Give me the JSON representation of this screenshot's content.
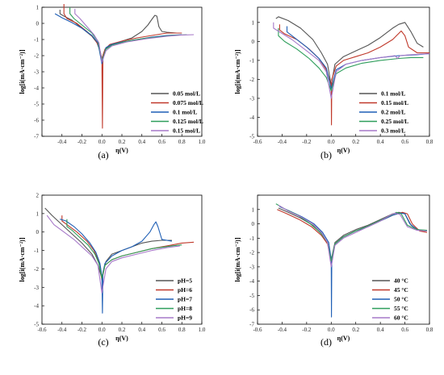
{
  "chart_data": [
    {
      "type": "line",
      "panel_label": "(a)",
      "xlabel": "η(V)",
      "ylabel": "log[i(mA·cm⁻²)]",
      "xlim": [
        -0.6,
        1.0
      ],
      "ylim": [
        -7,
        1
      ],
      "xticks": [
        -0.6,
        -0.4,
        -0.2,
        0.0,
        0.2,
        0.4,
        0.6,
        0.8,
        1.0
      ],
      "xtick_labels": [
        "",
        "-0.4",
        "-0.2",
        "0.0",
        "0.2",
        "0.4",
        "0.6",
        "0.8",
        "1.0"
      ],
      "yticks": [
        -7,
        -6,
        -5,
        -4,
        -3,
        -2,
        -1,
        0,
        1
      ],
      "ytick_labels": [
        "-7",
        "-6",
        "-5",
        "-4",
        "-3",
        "-2",
        "-1",
        "0",
        "1"
      ],
      "legend_position": "bottom-right",
      "series": [
        {
          "name": "0.05 mol/L",
          "color": "#555555",
          "x": [
            -0.42,
            -0.42,
            -0.38,
            -0.3,
            -0.2,
            -0.1,
            -0.05,
            -0.02,
            0,
            0.02,
            0.05,
            0.1,
            0.2,
            0.3,
            0.4,
            0.46,
            0.5,
            0.53,
            0.55,
            0.57,
            0.6,
            0.65,
            0.75,
            0.8
          ],
          "y": [
            0.85,
            0.6,
            0.45,
            0.2,
            -0.3,
            -0.8,
            -1.2,
            -1.7,
            -2.2,
            -1.8,
            -1.5,
            -1.3,
            -1.1,
            -0.9,
            -0.5,
            -0.1,
            0.25,
            0.5,
            0.45,
            -0.2,
            -0.5,
            -0.55,
            -0.6,
            -0.6
          ]
        },
        {
          "name": "0.075 mol/L",
          "color": "#c0392b",
          "x": [
            -0.38,
            -0.38,
            -0.35,
            -0.25,
            -0.15,
            -0.08,
            -0.03,
            0,
            0.005,
            0.01,
            0.03,
            0.08,
            0.2,
            0.35,
            0.5,
            0.65,
            0.8
          ],
          "y": [
            1.2,
            0.6,
            0.3,
            0.0,
            -0.5,
            -0.9,
            -1.4,
            -2.2,
            -6.5,
            -2.0,
            -1.6,
            -1.3,
            -1.1,
            -0.9,
            -0.75,
            -0.6,
            -0.6
          ]
        },
        {
          "name": "0.1 mol/L",
          "color": "#1f5fb5",
          "x": [
            -0.47,
            -0.4,
            -0.3,
            -0.2,
            -0.1,
            -0.04,
            0,
            0.04,
            0.1,
            0.2,
            0.35,
            0.5,
            0.65,
            0.8
          ],
          "y": [
            0.6,
            0.35,
            0.05,
            -0.3,
            -0.75,
            -1.2,
            -2.5,
            -1.5,
            -1.3,
            -1.15,
            -1.0,
            -0.85,
            -0.75,
            -0.7
          ]
        },
        {
          "name": "0.125 mol/L",
          "color": "#2e9e5b",
          "x": [
            -0.32,
            -0.32,
            -0.28,
            -0.2,
            -0.1,
            -0.04,
            0,
            0.04,
            0.1,
            0.25,
            0.4,
            0.55,
            0.7,
            0.85
          ],
          "y": [
            1.0,
            0.6,
            0.3,
            -0.1,
            -0.6,
            -1.1,
            -2.3,
            -1.6,
            -1.35,
            -1.1,
            -0.95,
            -0.85,
            -0.75,
            -0.7
          ]
        },
        {
          "name": "0.15 mol/L",
          "color": "#a678c8",
          "x": [
            -0.27,
            -0.27,
            -0.22,
            -0.15,
            -0.08,
            -0.03,
            0,
            0.04,
            0.1,
            0.25,
            0.45,
            0.65,
            0.8,
            0.92
          ],
          "y": [
            0.9,
            0.6,
            0.3,
            -0.2,
            -0.7,
            -1.2,
            -2.4,
            -1.7,
            -1.4,
            -1.15,
            -0.95,
            -0.8,
            -0.72,
            -0.7
          ]
        }
      ]
    },
    {
      "type": "line",
      "panel_label": "(b)",
      "xlabel": "η(V)",
      "ylabel": "log[i(mA·cm⁻²)]",
      "xlim": [
        -0.6,
        0.8
      ],
      "ylim": [
        -5,
        1.8
      ],
      "xticks": [
        -0.6,
        -0.4,
        -0.2,
        0.0,
        0.2,
        0.4,
        0.6,
        0.8
      ],
      "xtick_labels": [
        "-0.6",
        "-0.4",
        "-0.2",
        "0.0",
        "0.2",
        "0.4",
        "0.6",
        "0.8"
      ],
      "yticks": [
        -5,
        -4,
        -3,
        -2,
        -1,
        0,
        1
      ],
      "ytick_labels": [
        "-5",
        "-4",
        "-3",
        "-2",
        "-1",
        "0",
        "1"
      ],
      "legend_position": "bottom-right",
      "series": [
        {
          "name": "0.1 mol/L",
          "color": "#555555",
          "x": [
            -0.45,
            -0.43,
            -0.35,
            -0.25,
            -0.15,
            -0.08,
            -0.03,
            0,
            0.03,
            0.1,
            0.2,
            0.3,
            0.4,
            0.5,
            0.55,
            0.6,
            0.65,
            0.7,
            0.75
          ],
          "y": [
            1.2,
            1.3,
            1.1,
            0.7,
            0.1,
            -0.6,
            -1.2,
            -2.3,
            -1.2,
            -0.8,
            -0.5,
            -0.2,
            0.2,
            0.7,
            0.9,
            1.0,
            0.5,
            -0.1,
            -0.3
          ]
        },
        {
          "name": "0.15 mol/L",
          "color": "#c0392b",
          "x": [
            -0.42,
            -0.42,
            -0.38,
            -0.28,
            -0.18,
            -0.1,
            -0.04,
            0,
            0.002,
            0.005,
            0.04,
            0.1,
            0.2,
            0.3,
            0.4,
            0.5,
            0.57,
            0.6,
            0.63,
            0.7,
            0.8
          ],
          "y": [
            0.9,
            0.6,
            0.4,
            0.1,
            -0.4,
            -0.9,
            -1.5,
            -2.3,
            -4.4,
            -2.0,
            -1.3,
            -1.0,
            -0.8,
            -0.6,
            -0.3,
            0.1,
            0.55,
            0.3,
            -0.3,
            -0.6,
            -0.6
          ]
        },
        {
          "name": "0.2 mol/L",
          "color": "#1f5fb5",
          "x": [
            -0.36,
            -0.36,
            -0.3,
            -0.2,
            -0.1,
            -0.04,
            0,
            0.04,
            0.12,
            0.25,
            0.4,
            0.55,
            0.7,
            0.8
          ],
          "y": [
            0.8,
            0.5,
            0.2,
            -0.3,
            -0.9,
            -1.4,
            -2.5,
            -1.5,
            -1.2,
            -1.0,
            -0.85,
            -0.75,
            -0.7,
            -0.65
          ]
        },
        {
          "name": "0.25 mol/L",
          "color": "#2e9e5b",
          "x": [
            -0.43,
            -0.43,
            -0.38,
            -0.28,
            -0.18,
            -0.1,
            -0.04,
            0,
            0.04,
            0.12,
            0.25,
            0.4,
            0.55,
            0.65,
            0.75
          ],
          "y": [
            0.7,
            0.3,
            0.0,
            -0.4,
            -0.9,
            -1.4,
            -1.9,
            -2.6,
            -1.7,
            -1.4,
            -1.15,
            -1.0,
            -0.9,
            -0.85,
            -0.85
          ]
        },
        {
          "name": "0.3 mol/L",
          "color": "#a678c8",
          "x": [
            -0.47,
            -0.47,
            -0.42,
            -0.32,
            -0.2,
            -0.1,
            -0.04,
            0,
            0.04,
            0.12,
            0.25,
            0.4,
            0.52,
            0.54,
            0.56,
            0.65,
            0.8
          ],
          "y": [
            1.0,
            0.7,
            0.5,
            0.1,
            -0.5,
            -1.0,
            -1.6,
            -3.0,
            -1.6,
            -1.2,
            -1.0,
            -0.85,
            -0.75,
            -0.9,
            -0.75,
            -0.7,
            -0.65
          ]
        }
      ]
    },
    {
      "type": "line",
      "panel_label": "(c)",
      "xlabel": "η(V)",
      "ylabel": "log[i(mA·cm⁻²)]",
      "xlim": [
        -0.6,
        1.0
      ],
      "ylim": [
        -5,
        2
      ],
      "xticks": [
        -0.6,
        -0.4,
        -0.2,
        0.0,
        0.2,
        0.4,
        0.6,
        0.8,
        1.0
      ],
      "xtick_labels": [
        "-0.6",
        "-0.4",
        "-0.2",
        "0.0",
        "0.2",
        "0.4",
        "0.6",
        "0.8",
        "1.0"
      ],
      "yticks": [
        -5,
        -4,
        -3,
        -2,
        -1,
        0,
        1,
        2
      ],
      "ytick_labels": [
        "-5",
        "-4",
        "-3",
        "-2",
        "-1",
        "0",
        "1",
        "2"
      ],
      "legend_position": "bottom-right",
      "series": [
        {
          "name": "pH=5",
          "color": "#555555",
          "x": [
            -0.57,
            -0.5,
            -0.4,
            -0.3,
            -0.2,
            -0.1,
            -0.04,
            0,
            0.04,
            0.1,
            0.2,
            0.3,
            0.4,
            0.5,
            0.6,
            0.7
          ],
          "y": [
            1.3,
            0.9,
            0.4,
            -0.1,
            -0.6,
            -1.2,
            -1.8,
            -2.5,
            -1.6,
            -1.2,
            -1.0,
            -0.8,
            -0.6,
            -0.5,
            -0.45,
            -0.45
          ]
        },
        {
          "name": "pH=6",
          "color": "#c0392b",
          "x": [
            -0.4,
            -0.4,
            -0.35,
            -0.25,
            -0.15,
            -0.08,
            -0.03,
            0,
            0.03,
            0.1,
            0.2,
            0.35,
            0.5,
            0.65,
            0.8,
            0.92
          ],
          "y": [
            0.9,
            0.6,
            0.4,
            0.0,
            -0.5,
            -1.0,
            -1.6,
            -2.6,
            -1.8,
            -1.5,
            -1.3,
            -1.1,
            -0.9,
            -0.75,
            -0.6,
            -0.55
          ]
        },
        {
          "name": "pH=7",
          "color": "#1f5fb5",
          "x": [
            -0.42,
            -0.36,
            -0.28,
            -0.2,
            -0.12,
            -0.06,
            -0.02,
            0,
            0.005,
            0.01,
            0.03,
            0.1,
            0.2,
            0.3,
            0.4,
            0.48,
            0.52,
            0.54,
            0.56,
            0.6,
            0.7
          ],
          "y": [
            0.7,
            0.6,
            0.3,
            -0.1,
            -0.6,
            -1.1,
            -1.7,
            -2.4,
            -4.4,
            -2.2,
            -1.7,
            -1.3,
            -1.0,
            -0.8,
            -0.5,
            0.0,
            0.4,
            0.55,
            0.3,
            -0.4,
            -0.5
          ]
        },
        {
          "name": "pH=8",
          "color": "#2e9e5b",
          "x": [
            -0.35,
            -0.35,
            -0.3,
            -0.22,
            -0.14,
            -0.07,
            -0.03,
            0,
            0.03,
            0.1,
            0.2,
            0.35,
            0.5,
            0.7,
            0.8
          ],
          "y": [
            0.7,
            0.3,
            0.1,
            -0.3,
            -0.7,
            -1.2,
            -1.7,
            -2.5,
            -1.8,
            -1.5,
            -1.3,
            -1.1,
            -0.9,
            -0.75,
            -0.7
          ]
        },
        {
          "name": "pH=9",
          "color": "#a678c8",
          "x": [
            -0.55,
            -0.48,
            -0.38,
            -0.28,
            -0.18,
            -0.1,
            -0.04,
            0,
            0.04,
            0.1,
            0.2,
            0.35,
            0.5,
            0.65,
            0.78
          ],
          "y": [
            0.9,
            0.4,
            0.0,
            -0.4,
            -0.9,
            -1.3,
            -1.8,
            -3.3,
            -2.0,
            -1.6,
            -1.4,
            -1.2,
            -1.0,
            -0.85,
            -0.75
          ]
        }
      ]
    },
    {
      "type": "line",
      "panel_label": "(d)",
      "xlabel": "η(V)",
      "ylabel": "log[i(mA·cm⁻²)]",
      "xlim": [
        -0.6,
        0.8
      ],
      "ylim": [
        -7,
        2
      ],
      "xticks": [
        -0.6,
        -0.4,
        -0.2,
        0.0,
        0.2,
        0.4,
        0.6,
        0.8
      ],
      "xtick_labels": [
        "-0.6",
        "-0.4",
        "-0.2",
        "0.0",
        "0.2",
        "0.4",
        "0.6",
        "0.8"
      ],
      "yticks": [
        -7,
        -6,
        -5,
        -4,
        -3,
        -2,
        -1,
        0,
        1,
        2
      ],
      "ytick_labels": [
        "-7",
        "-6",
        "-5",
        "-4",
        "-3",
        "-2",
        "-1",
        "0",
        "1",
        ""
      ],
      "legend_position": "bottom-right",
      "series": [
        {
          "name": "40 °C",
          "color": "#555555",
          "x": [
            -0.43,
            -0.35,
            -0.25,
            -0.15,
            -0.08,
            -0.03,
            0,
            0.03,
            0.1,
            0.2,
            0.3,
            0.4,
            0.5,
            0.55,
            0.6,
            0.65,
            0.7,
            0.78
          ],
          "y": [
            1.1,
            0.8,
            0.4,
            -0.1,
            -0.7,
            -1.3,
            -2.5,
            -1.3,
            -0.8,
            -0.4,
            -0.1,
            0.3,
            0.7,
            0.8,
            0.7,
            -0.1,
            -0.4,
            -0.5
          ]
        },
        {
          "name": "45 °C",
          "color": "#c0392b",
          "x": [
            -0.44,
            -0.36,
            -0.26,
            -0.16,
            -0.08,
            -0.03,
            0,
            0.03,
            0.1,
            0.2,
            0.3,
            0.4,
            0.5,
            0.58,
            0.62,
            0.66,
            0.72,
            0.78
          ],
          "y": [
            1.0,
            0.7,
            0.3,
            -0.2,
            -0.8,
            -1.4,
            -2.6,
            -1.4,
            -0.9,
            -0.5,
            -0.2,
            0.2,
            0.6,
            0.8,
            0.7,
            0.0,
            -0.5,
            -0.6
          ]
        },
        {
          "name": "50 °C",
          "color": "#1f5fb5",
          "x": [
            -0.42,
            -0.34,
            -0.24,
            -0.14,
            -0.07,
            -0.02,
            0,
            0.002,
            0.005,
            0.03,
            0.1,
            0.2,
            0.3,
            0.4,
            0.5,
            0.56,
            0.6,
            0.64,
            0.7,
            0.78
          ],
          "y": [
            1.2,
            0.9,
            0.5,
            0.0,
            -0.6,
            -1.3,
            -2.5,
            -6.5,
            -2.4,
            -1.4,
            -0.9,
            -0.5,
            -0.2,
            0.2,
            0.6,
            0.75,
            0.7,
            0.0,
            -0.4,
            -0.5
          ]
        },
        {
          "name": "55 °C",
          "color": "#2e9e5b",
          "x": [
            -0.45,
            -0.37,
            -0.27,
            -0.17,
            -0.09,
            -0.03,
            0,
            0.03,
            0.1,
            0.2,
            0.3,
            0.4,
            0.5,
            0.53,
            0.57,
            0.62,
            0.7,
            0.78
          ],
          "y": [
            1.4,
            1.0,
            0.6,
            0.0,
            -0.6,
            -1.3,
            -2.6,
            -1.4,
            -0.9,
            -0.5,
            -0.15,
            0.25,
            0.65,
            0.8,
            0.7,
            -0.1,
            -0.4,
            -0.45
          ]
        },
        {
          "name": "60 °C",
          "color": "#a678c8",
          "x": [
            -0.43,
            -0.35,
            -0.25,
            -0.15,
            -0.08,
            -0.03,
            0,
            0.03,
            0.1,
            0.2,
            0.3,
            0.4,
            0.48,
            0.52,
            0.56,
            0.62,
            0.7,
            0.78
          ],
          "y": [
            1.3,
            0.9,
            0.5,
            0.0,
            -0.6,
            -1.3,
            -3.0,
            -1.5,
            -1.0,
            -0.6,
            -0.2,
            0.2,
            0.6,
            0.75,
            0.65,
            -0.2,
            -0.45,
            -0.5
          ]
        }
      ]
    }
  ]
}
